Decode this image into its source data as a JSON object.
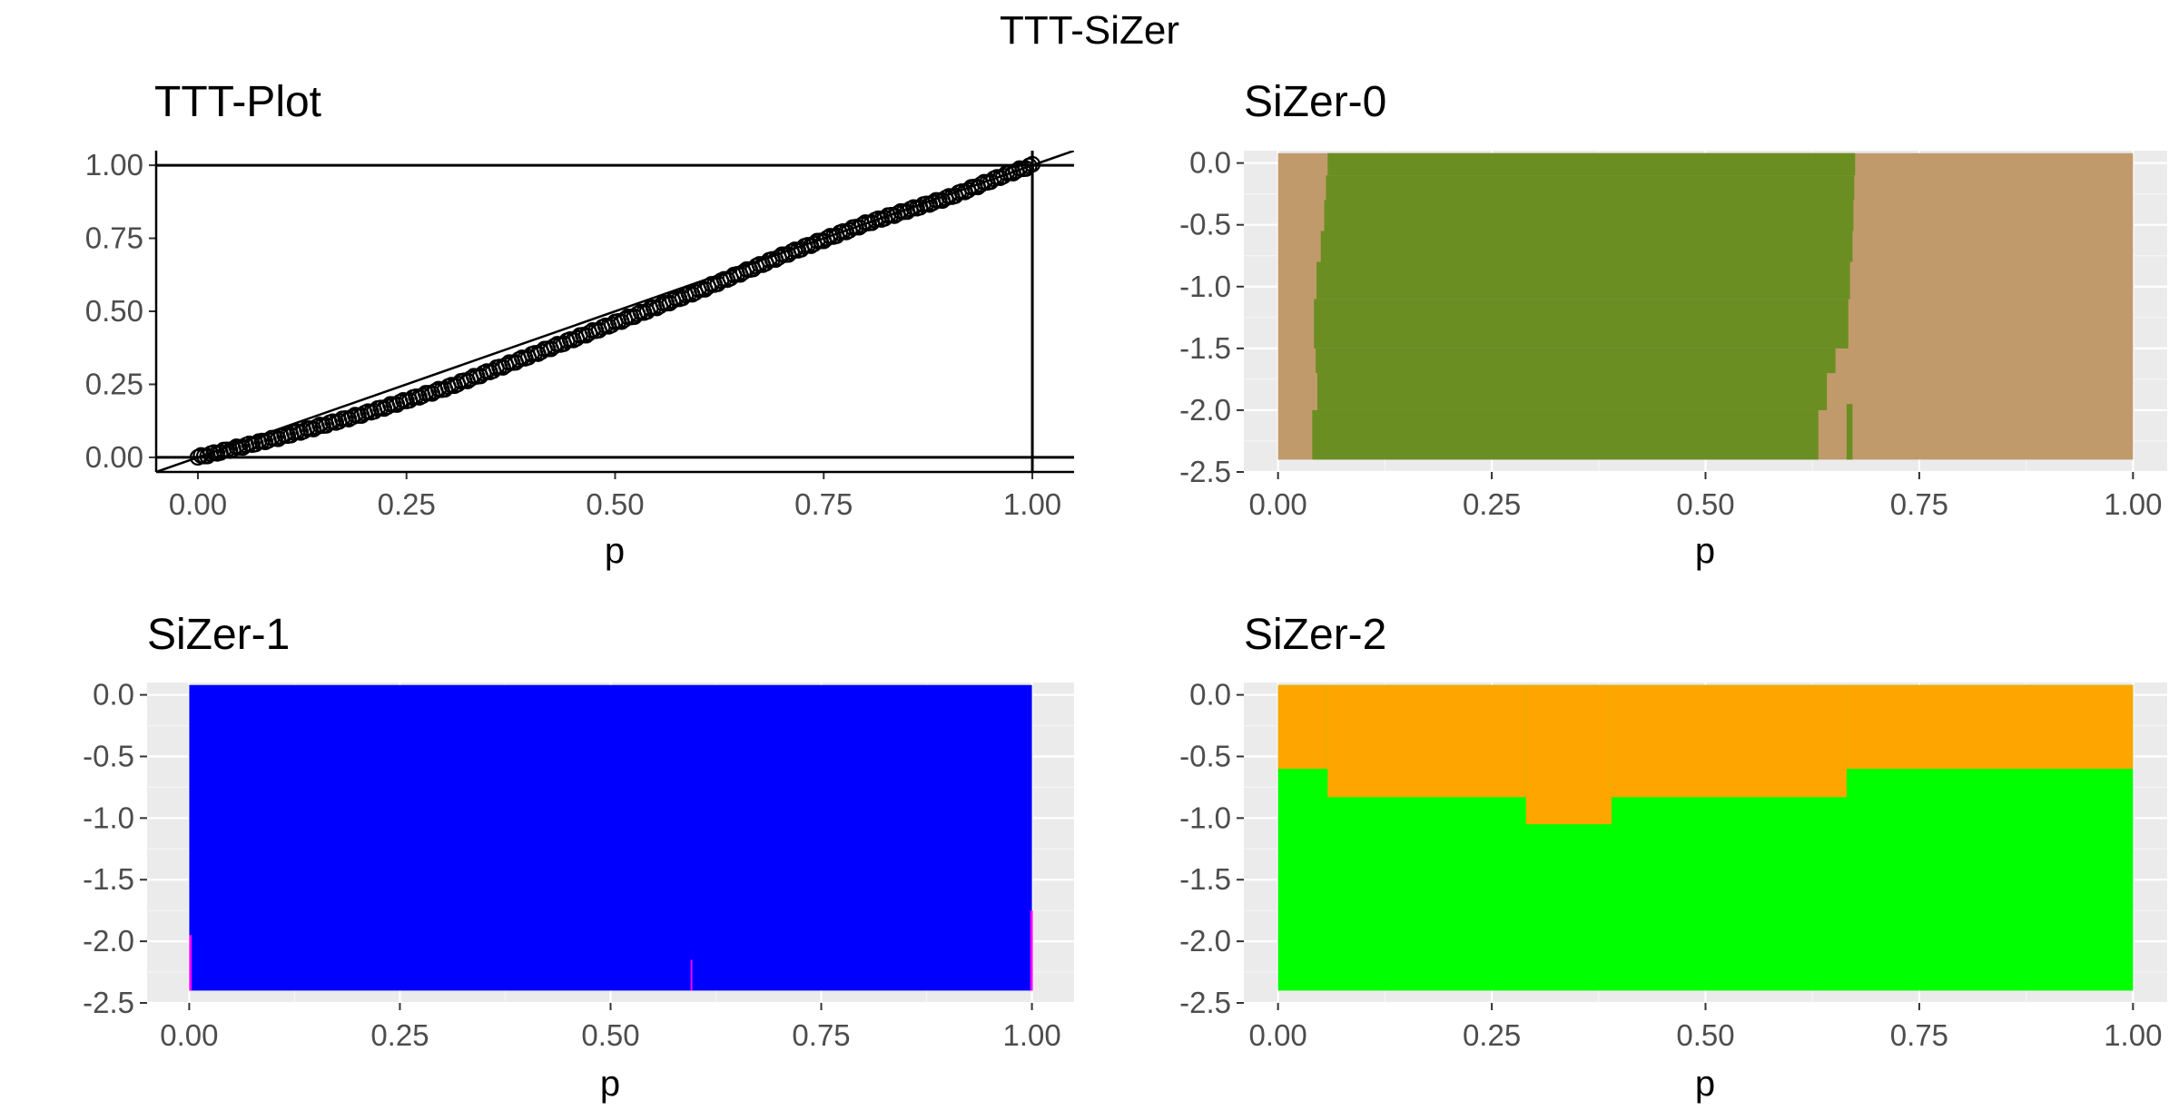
{
  "title": "TTT-SiZer",
  "colors": {
    "panel_background": "#ebebeb",
    "grid_major": "#ffffff",
    "grid_minor": "#f5f5f5",
    "tick_text": "#4d4d4d",
    "sizer0_tan": "#c19a6b",
    "sizer0_green": "#6b8e23",
    "sizer1_blue": "#0000ff",
    "sizer1_magenta": "#ff00ff",
    "sizer2_orange": "#ffa500",
    "sizer2_green": "#00ff00"
  },
  "chart_data": [
    {
      "id": "ttt",
      "type": "scatter",
      "title": "TTT-Plot",
      "xlabel": "p",
      "ylabel": "",
      "xlim": [
        -0.05,
        1.05
      ],
      "ylim": [
        -0.05,
        1.05
      ],
      "x_ticks": [
        "0.00",
        "0.25",
        "0.50",
        "0.75",
        "1.00"
      ],
      "x_tick_values": [
        0,
        0.25,
        0.5,
        0.75,
        1
      ],
      "y_ticks": [
        "0.00",
        "0.25",
        "0.50",
        "0.75",
        "1.00"
      ],
      "y_tick_values": [
        0,
        0.25,
        0.5,
        0.75,
        1
      ],
      "grid": false,
      "reference_lines": {
        "hlines": [
          0,
          1
        ],
        "vlines": [
          1
        ],
        "diagonal": [
          [
            0,
            0
          ],
          [
            1,
            1
          ]
        ]
      },
      "curve": [
        [
          0,
          0
        ],
        [
          0.1,
          0.07
        ],
        [
          0.2,
          0.15
        ],
        [
          0.3,
          0.24
        ],
        [
          0.4,
          0.35
        ],
        [
          0.5,
          0.46
        ],
        [
          0.6,
          0.57
        ],
        [
          0.7,
          0.69
        ],
        [
          0.8,
          0.8
        ],
        [
          0.9,
          0.89
        ],
        [
          0.97,
          0.97
        ],
        [
          1,
          1
        ]
      ]
    },
    {
      "id": "sizer0",
      "type": "heatmap",
      "title": "SiZer-0",
      "xlabel": "p",
      "ylabel": "",
      "xlim": [
        -0.04,
        1.04
      ],
      "ylim": [
        -2.5,
        0.1
      ],
      "x_ticks": [
        "0.00",
        "0.25",
        "0.50",
        "0.75",
        "1.00"
      ],
      "x_tick_values": [
        0,
        0.25,
        0.5,
        0.75,
        1
      ],
      "y_ticks": [
        "0.0",
        "-0.5",
        "-1.0",
        "-1.5",
        "-2.0",
        "-2.5"
      ],
      "y_tick_values": [
        0,
        -0.5,
        -1,
        -1.5,
        -2,
        -2.5
      ],
      "grid": true,
      "x_range": [
        0,
        1
      ],
      "y_range": [
        -2.4,
        0.08
      ],
      "background_color": "tan",
      "band_color": "green",
      "band_rows": [
        {
          "y0": -0.1,
          "y1": 0.08,
          "from": 0.058,
          "to": 0.675
        },
        {
          "y0": -0.3,
          "y1": -0.1,
          "from": 0.056,
          "to": 0.674
        },
        {
          "y0": -0.55,
          "y1": -0.3,
          "from": 0.054,
          "to": 0.673
        },
        {
          "y0": -0.8,
          "y1": -0.55,
          "from": 0.05,
          "to": 0.672
        },
        {
          "y0": -1.1,
          "y1": -0.8,
          "from": 0.045,
          "to": 0.669
        },
        {
          "y0": -1.5,
          "y1": -1.1,
          "from": 0.042,
          "to": 0.667
        },
        {
          "y0": -1.7,
          "y1": -1.5,
          "from": 0.044,
          "to": 0.652
        },
        {
          "y0": -2.0,
          "y1": -1.7,
          "from": 0.046,
          "to": 0.642
        },
        {
          "y0": -2.4,
          "y1": -2.0,
          "from": 0.04,
          "to": 0.632
        }
      ],
      "band_extra": [
        {
          "y0": -2.4,
          "y1": -1.95,
          "from": 0.665,
          "to": 0.672
        }
      ]
    },
    {
      "id": "sizer1",
      "type": "heatmap",
      "title": "SiZer-1",
      "xlabel": "p",
      "ylabel": "",
      "xlim": [
        -0.05,
        1.05
      ],
      "ylim": [
        -2.5,
        0.1
      ],
      "x_ticks": [
        "0.00",
        "0.25",
        "0.50",
        "0.75",
        "1.00"
      ],
      "x_tick_values": [
        0,
        0.25,
        0.5,
        0.75,
        1
      ],
      "y_ticks": [
        "0.0",
        "-0.5",
        "-1.0",
        "-1.5",
        "-2.0",
        "-2.5"
      ],
      "y_tick_values": [
        0,
        -0.5,
        -1,
        -1.5,
        -2,
        -2.5
      ],
      "grid": true,
      "x_range": [
        0,
        1
      ],
      "y_range": [
        -2.4,
        0.08
      ],
      "background_color": "blue",
      "slivers": [
        {
          "x": 0.0,
          "w": 0.003,
          "y0": -2.4,
          "y1": -1.95
        },
        {
          "x": 0.595,
          "w": 0.002,
          "y0": -2.4,
          "y1": -2.15
        },
        {
          "x": 0.998,
          "w": 0.003,
          "y0": -2.4,
          "y1": -1.75
        }
      ]
    },
    {
      "id": "sizer2",
      "type": "heatmap",
      "title": "SiZer-2",
      "xlabel": "p",
      "ylabel": "",
      "xlim": [
        -0.04,
        1.04
      ],
      "ylim": [
        -2.5,
        0.1
      ],
      "x_ticks": [
        "0.00",
        "0.25",
        "0.50",
        "0.75",
        "1.00"
      ],
      "x_tick_values": [
        0,
        0.25,
        0.5,
        0.75,
        1
      ],
      "y_ticks": [
        "0.0",
        "-0.5",
        "-1.0",
        "-1.5",
        "-2.0",
        "-2.5"
      ],
      "y_tick_values": [
        0,
        -0.5,
        -1,
        -1.5,
        -2,
        -2.5
      ],
      "grid": true,
      "x_range": [
        0,
        1
      ],
      "y_range": [
        -2.4,
        0.08
      ],
      "background_color": "green",
      "top_color": "orange",
      "boundary": [
        {
          "from": 0.0,
          "to": 0.058,
          "y": -0.6
        },
        {
          "from": 0.058,
          "to": 0.29,
          "y": -0.83
        },
        {
          "from": 0.29,
          "to": 0.39,
          "y": -1.05
        },
        {
          "from": 0.39,
          "to": 0.665,
          "y": -0.83
        },
        {
          "from": 0.665,
          "to": 1.0,
          "y": -0.6
        }
      ]
    }
  ]
}
